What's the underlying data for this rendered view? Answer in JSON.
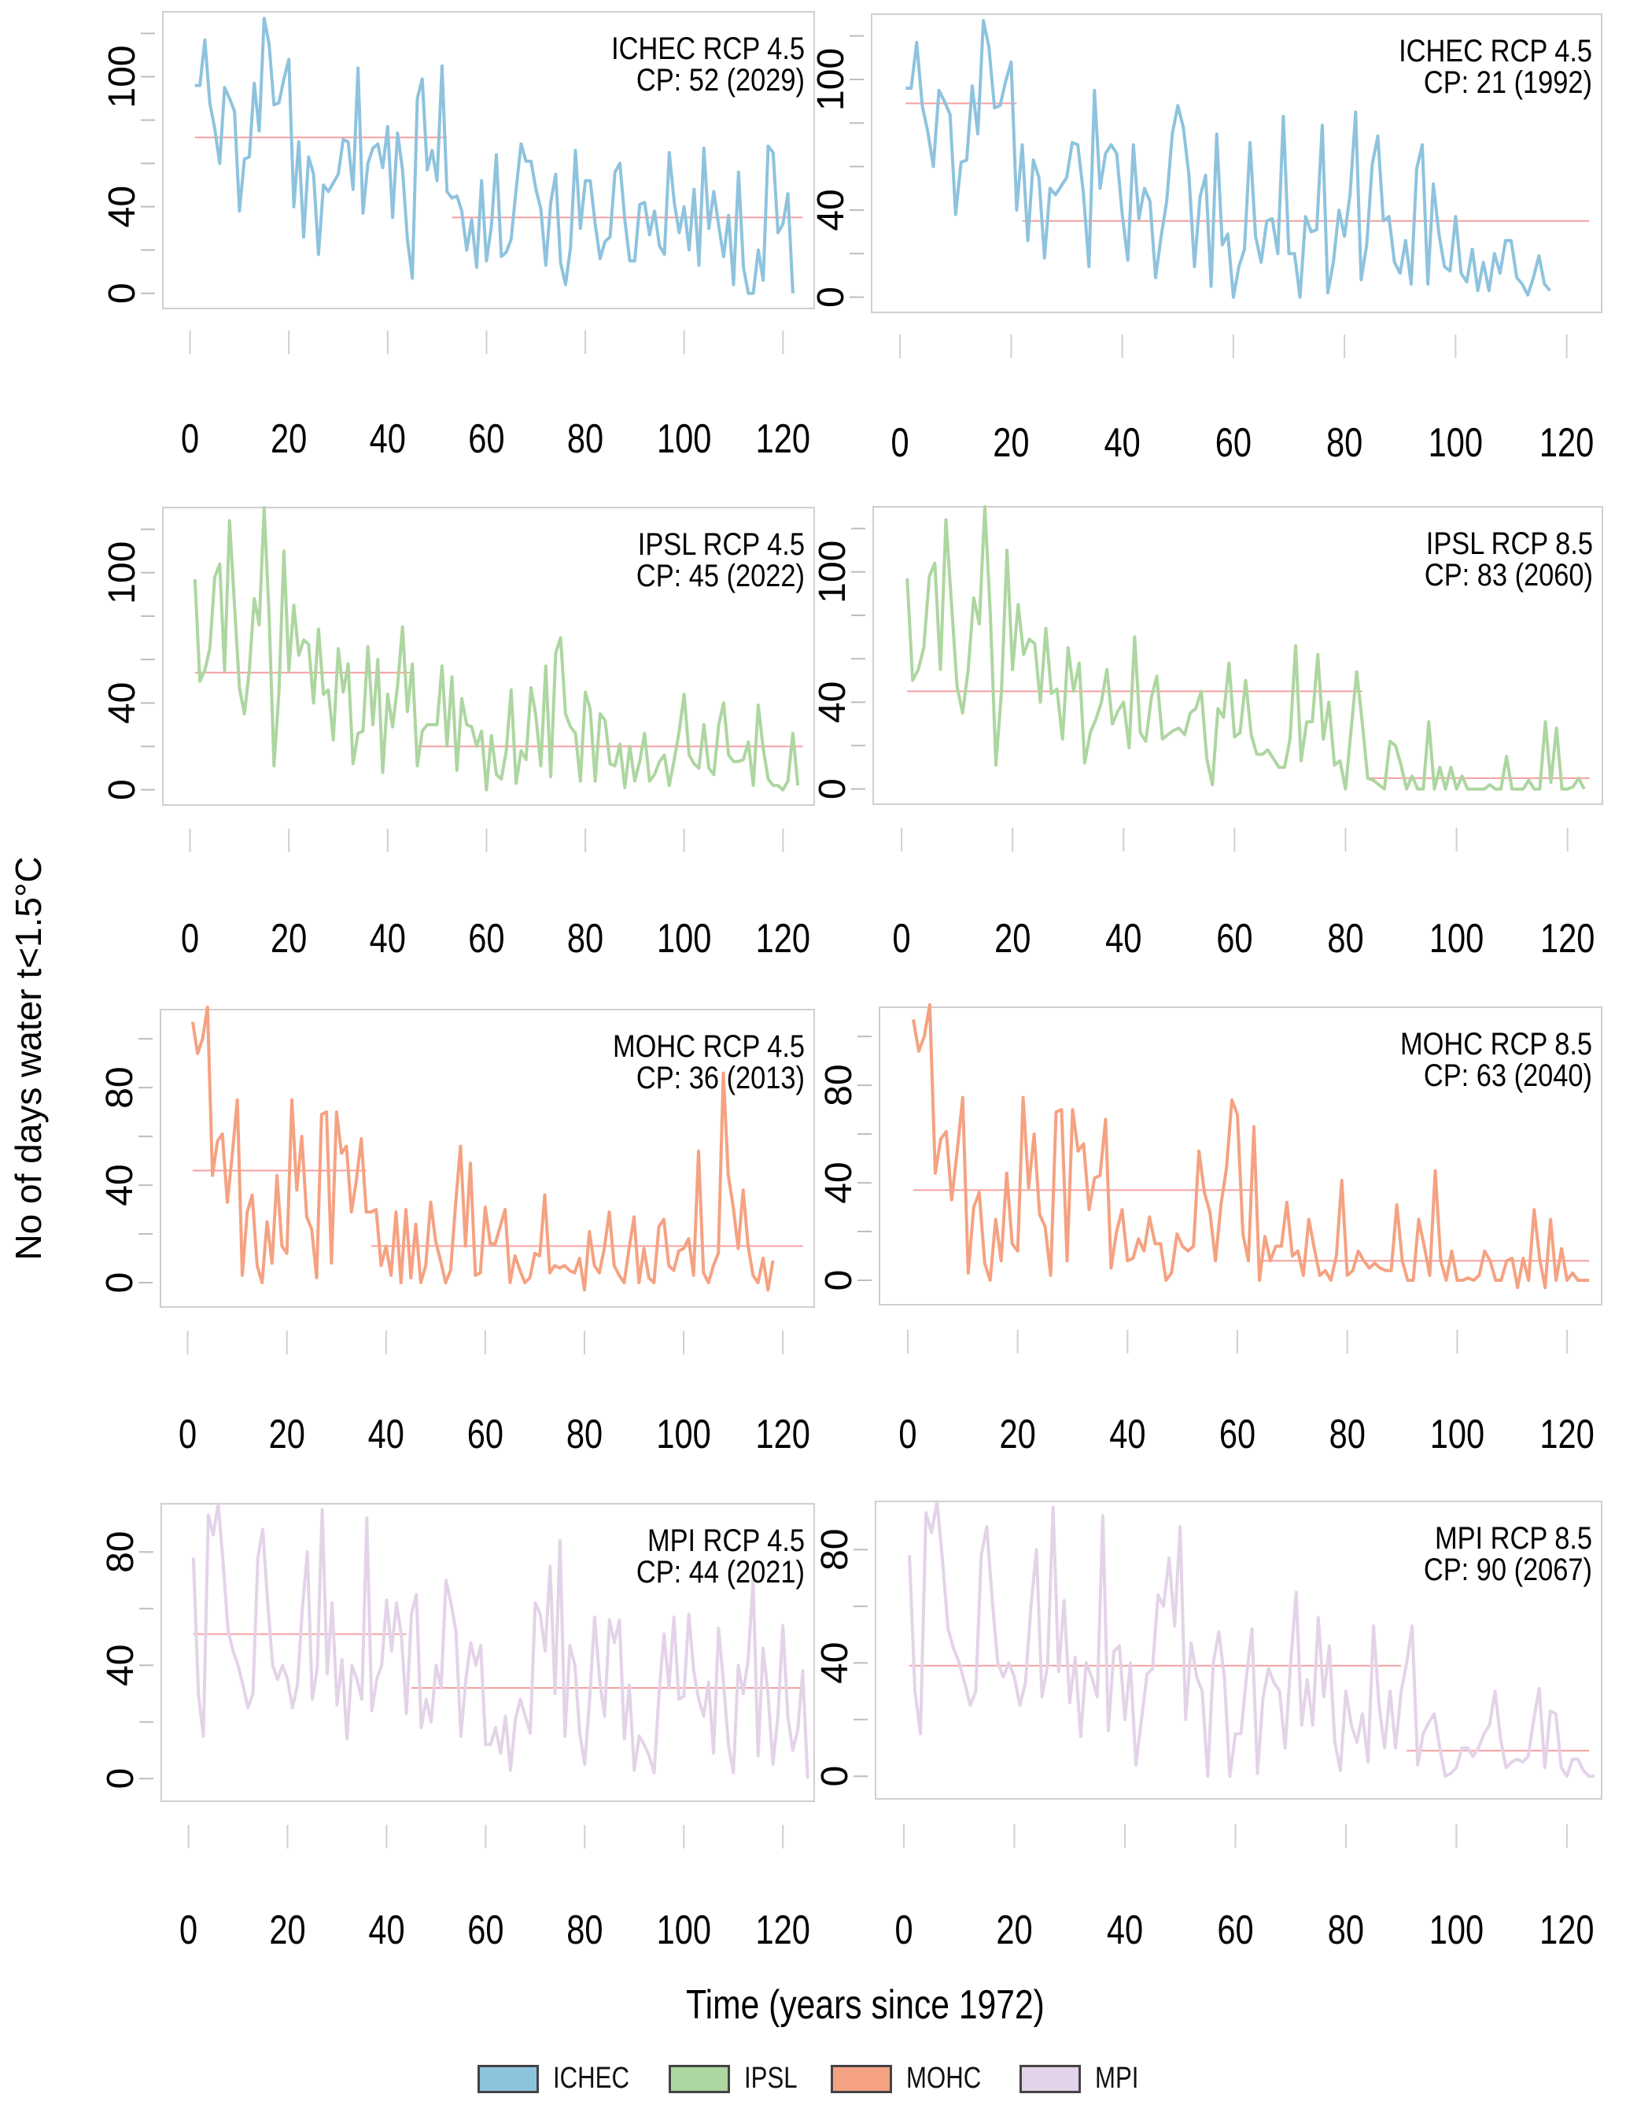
{
  "chart_data": {
    "type": "line",
    "ylabel": "No of days water t<1.5°C",
    "xlabel": "Time (years since 1972)",
    "legend": {
      "placement": "bottom-center",
      "entries": [
        {
          "name": "ICHEC",
          "color": "#8EC3DE"
        },
        {
          "name": "IPSL",
          "color": "#ADD6A0"
        },
        {
          "name": "MOHC",
          "color": "#F5A282"
        },
        {
          "name": "MPI",
          "color": "#E4D3E8"
        }
      ]
    },
    "changepoint_line_color": "#F4A0A0",
    "x_ticks": [
      0,
      20,
      40,
      60,
      80,
      100,
      120
    ],
    "panels": [
      {
        "model": "ICHEC",
        "title": "ICHEC RCP 4.5",
        "cp_label": "CP: 52 (2029)",
        "cp_index": 52,
        "color": "#8EC3DE",
        "ylim": [
          -7,
          130
        ],
        "yticks": [
          0,
          20,
          40,
          60,
          80,
          100,
          120
        ],
        "ytick_labels": [
          "0",
          "40",
          "100"
        ],
        "segment_means": [
          {
            "from": 1,
            "to": 52,
            "value": 72
          },
          {
            "from": 53,
            "to": 124,
            "value": 35
          }
        ],
        "values": [
          96,
          96,
          117,
          88,
          76,
          60,
          95,
          90,
          84,
          38,
          62,
          63,
          97,
          75,
          127,
          115,
          87,
          88,
          99,
          108,
          40,
          70,
          26,
          63,
          55,
          18,
          50,
          47,
          51,
          55,
          71,
          70,
          48,
          104,
          37,
          60,
          67,
          69,
          58,
          77,
          35,
          74,
          57,
          25,
          7,
          90,
          99,
          57,
          66,
          52,
          105,
          47,
          44,
          45,
          38,
          20,
          34,
          12,
          52,
          15,
          31,
          64,
          17,
          19,
          25,
          48,
          69,
          61,
          61,
          48,
          39,
          13,
          42,
          55,
          14,
          4,
          21,
          66,
          30,
          52,
          52,
          32,
          16,
          24,
          26,
          56,
          60,
          34,
          15,
          15,
          41,
          42,
          27,
          38,
          22,
          18,
          65,
          42,
          28,
          40,
          20,
          48,
          13,
          67,
          30,
          47,
          31,
          17,
          36,
          4,
          56,
          12,
          0,
          0,
          20,
          6,
          68,
          65,
          28,
          32,
          46,
          0
        ],
        "ylim_lo": -7
      },
      {
        "model": "ICHEC",
        "title": "ICHEC RCP 4.5",
        "cp_label": "CP: 21 (1992)",
        "cp_index": 21,
        "color": "#8EC3DE",
        "ylim": [
          -7,
          130
        ],
        "yticks": [
          0,
          20,
          40,
          60,
          80,
          100,
          120
        ],
        "ytick_labels": [
          "0",
          "40",
          "100"
        ],
        "segment_means": [
          {
            "from": 1,
            "to": 21,
            "value": 89
          },
          {
            "from": 22,
            "to": 124,
            "value": 35
          }
        ],
        "values": [
          96,
          96,
          117,
          88,
          76,
          60,
          95,
          90,
          84,
          38,
          62,
          63,
          97,
          75,
          127,
          115,
          87,
          88,
          99,
          108,
          40,
          70,
          26,
          63,
          55,
          18,
          50,
          47,
          51,
          55,
          71,
          70,
          48,
          14,
          95,
          50,
          66,
          70,
          66,
          38,
          17,
          70,
          36,
          50,
          44,
          9,
          28,
          44,
          75,
          88,
          78,
          56,
          14,
          46,
          56,
          5,
          75,
          24,
          29,
          0,
          14,
          22,
          71,
          28,
          16,
          35,
          36,
          20,
          83,
          20,
          20,
          0,
          37,
          30,
          31,
          79,
          2,
          16,
          40,
          28,
          47,
          85,
          8,
          24,
          61,
          74,
          35,
          37,
          16,
          11,
          26,
          6,
          59,
          70,
          6,
          52,
          29,
          14,
          12,
          37,
          11,
          7,
          22,
          3,
          16,
          3,
          20,
          11,
          26,
          26,
          9,
          6,
          1,
          9,
          19,
          6,
          3
        ],
        "ylim_lo": -7
      },
      {
        "model": "IPSL",
        "title": "IPSL RCP 4.5",
        "cp_label": "CP: 45 (2022)",
        "cp_index": 45,
        "color": "#ADD6A0",
        "ylim": [
          -7,
          130
        ],
        "yticks": [
          0,
          20,
          40,
          60,
          80,
          100,
          120
        ],
        "ytick_labels": [
          "0",
          "40",
          "100"
        ],
        "segment_means": [
          {
            "from": 1,
            "to": 45,
            "value": 54
          },
          {
            "from": 46,
            "to": 124,
            "value": 20
          }
        ],
        "values": [
          97,
          50,
          55,
          65,
          98,
          104,
          55,
          124,
          85,
          47,
          35,
          55,
          88,
          76,
          130,
          80,
          11,
          45,
          110,
          55,
          85,
          62,
          69,
          67,
          40,
          74,
          44,
          46,
          23,
          65,
          45,
          58,
          12,
          26,
          27,
          66,
          30,
          60,
          8,
          44,
          29,
          48,
          75,
          36,
          58,
          11,
          27,
          30,
          30,
          30,
          57,
          20,
          52,
          9,
          42,
          30,
          29,
          20,
          27,
          0,
          25,
          7,
          5,
          18,
          46,
          3,
          18,
          14,
          47,
          34,
          11,
          57,
          6,
          63,
          70,
          35,
          29,
          26,
          4,
          45,
          37,
          4,
          35,
          32,
          12,
          11,
          21,
          1,
          20,
          4,
          13,
          26,
          4,
          7,
          13,
          16,
          2,
          14,
          27,
          44,
          16,
          12,
          10,
          30,
          10,
          7,
          30,
          40,
          16,
          13,
          13,
          14,
          22,
          2,
          39,
          19,
          5,
          2,
          2,
          0,
          4,
          26,
          2
        ],
        "ylim_lo": -7
      },
      {
        "model": "IPSL",
        "title": "IPSL RCP 8.5",
        "cp_label": "CP: 83 (2060)",
        "cp_index": 83,
        "color": "#ADD6A0",
        "ylim": [
          -7,
          130
        ],
        "yticks": [
          0,
          20,
          40,
          60,
          80,
          100,
          120
        ],
        "ytick_labels": [
          "0",
          "40",
          "100"
        ],
        "segment_means": [
          {
            "from": 1,
            "to": 83,
            "value": 45
          },
          {
            "from": 84,
            "to": 124,
            "value": 5
          }
        ],
        "values": [
          97,
          50,
          55,
          65,
          98,
          104,
          55,
          124,
          85,
          47,
          35,
          55,
          88,
          76,
          130,
          80,
          11,
          45,
          110,
          55,
          85,
          62,
          69,
          67,
          40,
          74,
          44,
          46,
          23,
          65,
          45,
          58,
          12,
          26,
          32,
          40,
          55,
          30,
          36,
          40,
          19,
          70,
          26,
          22,
          42,
          52,
          23,
          25,
          27,
          28,
          25,
          35,
          37,
          45,
          14,
          2,
          37,
          33,
          58,
          24,
          26,
          50,
          25,
          16,
          16,
          18,
          14,
          10,
          10,
          23,
          66,
          13,
          31,
          31,
          62,
          23,
          40,
          11,
          13,
          0,
          27,
          54,
          31,
          5,
          4,
          2,
          0,
          22,
          20,
          11,
          0,
          6,
          0,
          0,
          31,
          0,
          10,
          0,
          10,
          0,
          6,
          0,
          0,
          0,
          0,
          2,
          0,
          0,
          15,
          0,
          0,
          0,
          4,
          0,
          0,
          31,
          3,
          28,
          0,
          0,
          1,
          5,
          0
        ],
        "ylim_lo": -7
      },
      {
        "model": "MOHC",
        "title": "MOHC RCP 4.5",
        "cp_label": "CP: 36 (2013)",
        "cp_index": 36,
        "color": "#F5A282",
        "ylim": [
          -10,
          112
        ],
        "yticks": [
          0,
          20,
          40,
          60,
          80,
          100
        ],
        "ytick_labels": [
          "0",
          "40",
          "80"
        ],
        "segment_means": [
          {
            "from": 1,
            "to": 36,
            "value": 46
          },
          {
            "from": 37,
            "to": 124,
            "value": 15
          }
        ],
        "values": [
          107,
          94,
          100,
          113,
          44,
          58,
          61,
          33,
          53,
          75,
          3,
          29,
          36,
          7,
          0,
          25,
          8,
          44,
          15,
          12,
          75,
          38,
          60,
          27,
          22,
          2,
          69,
          70,
          8,
          70,
          53,
          56,
          29,
          42,
          59,
          29,
          29,
          30,
          7,
          15,
          3,
          29,
          0,
          30,
          2,
          24,
          0,
          7,
          33,
          17,
          9,
          0,
          5,
          32,
          56,
          15,
          49,
          3,
          4,
          31,
          16,
          16,
          23,
          30,
          0,
          11,
          5,
          0,
          2,
          12,
          11,
          36,
          4,
          7,
          6,
          7,
          5,
          4,
          10,
          -3,
          21,
          7,
          4,
          14,
          29,
          7,
          3,
          0,
          14,
          27,
          0,
          14,
          2,
          0,
          23,
          26,
          7,
          5,
          13,
          14,
          18,
          3,
          54,
          4,
          0,
          7,
          12,
          86,
          44,
          31,
          14,
          38,
          15,
          3,
          0,
          10,
          -3,
          9
        ],
        "ylim_lo": -10
      },
      {
        "model": "MOHC",
        "title": "MOHC RCP 8.5",
        "cp_label": "CP: 63 (2040)",
        "cp_index": 63,
        "color": "#F5A282",
        "ylim": [
          -10,
          112
        ],
        "yticks": [
          0,
          20,
          40,
          60,
          80,
          100
        ],
        "ytick_labels": [
          "0",
          "40",
          "80"
        ],
        "segment_means": [
          {
            "from": 1,
            "to": 63,
            "value": 37
          },
          {
            "from": 64,
            "to": 124,
            "value": 8
          }
        ],
        "values": [
          107,
          94,
          100,
          113,
          44,
          58,
          61,
          33,
          53,
          75,
          3,
          30,
          36,
          7,
          0,
          25,
          8,
          44,
          15,
          12,
          75,
          38,
          60,
          27,
          22,
          2,
          69,
          70,
          8,
          70,
          53,
          56,
          29,
          42,
          43,
          66,
          5,
          20,
          29,
          8,
          9,
          17,
          12,
          26,
          15,
          15,
          0,
          3,
          19,
          14,
          12,
          14,
          53,
          36,
          28,
          8,
          31,
          46,
          74,
          68,
          19,
          8,
          63,
          0,
          18,
          8,
          14,
          14,
          32,
          10,
          12,
          2,
          25,
          13,
          2,
          4,
          0,
          10,
          41,
          2,
          4,
          12,
          8,
          5,
          7,
          5,
          4,
          4,
          31,
          8,
          0,
          0,
          25,
          14,
          2,
          45,
          8,
          0,
          12,
          0,
          0,
          1,
          0,
          2,
          12,
          8,
          0,
          0,
          8,
          9,
          -3,
          9,
          0,
          29,
          9,
          -3,
          25,
          0,
          13,
          0,
          3,
          0,
          0,
          0
        ],
        "ylim_lo": -10
      },
      {
        "model": "MPI",
        "title": "MPI RCP 4.5",
        "cp_label": "CP: 44 (2021)",
        "cp_index": 44,
        "color": "#E4D3E8",
        "ylim": [
          -8,
          97
        ],
        "yticks": [
          0,
          20,
          40,
          60,
          80
        ],
        "ytick_labels": [
          "0",
          "40",
          "80"
        ],
        "segment_means": [
          {
            "from": 1,
            "to": 44,
            "value": 51
          },
          {
            "from": 45,
            "to": 124,
            "value": 32
          }
        ],
        "values": [
          78,
          30,
          15,
          93,
          86,
          97,
          76,
          52,
          45,
          40,
          33,
          25,
          30,
          78,
          88,
          62,
          40,
          35,
          40,
          35,
          25,
          33,
          60,
          80,
          28,
          39,
          95,
          37,
          62,
          26,
          42,
          14,
          40,
          35,
          28,
          92,
          24,
          35,
          40,
          63,
          45,
          62,
          50,
          23,
          58,
          65,
          18,
          28,
          20,
          40,
          32,
          70,
          62,
          52,
          15,
          35,
          48,
          40,
          47,
          12,
          12,
          18,
          9,
          22,
          3,
          21,
          28,
          22,
          16,
          62,
          58,
          45,
          75,
          30,
          84,
          15,
          47,
          40,
          16,
          5,
          28,
          57,
          35,
          22,
          56,
          48,
          56,
          14,
          33,
          3,
          15,
          12,
          8,
          2,
          30,
          51,
          32,
          57,
          28,
          29,
          58,
          38,
          28,
          22,
          34,
          9,
          53,
          34,
          12,
          2,
          40,
          30,
          42,
          70,
          8,
          46,
          30,
          5,
          22,
          54,
          22,
          10,
          17,
          38,
          0
        ],
        "ylim_lo": -8
      },
      {
        "model": "MPI",
        "title": "MPI RCP 8.5",
        "cp_label": "CP: 90 (2067)",
        "cp_index": 90,
        "color": "#E4D3E8",
        "ylim": [
          -8,
          97
        ],
        "yticks": [
          0,
          20,
          40,
          60,
          80
        ],
        "ytick_labels": [
          "0",
          "40",
          "80"
        ],
        "segment_means": [
          {
            "from": 1,
            "to": 90,
            "value": 39
          },
          {
            "from": 91,
            "to": 124,
            "value": 9
          }
        ],
        "values": [
          78,
          30,
          15,
          93,
          86,
          97,
          76,
          52,
          45,
          40,
          33,
          25,
          30,
          78,
          88,
          62,
          40,
          35,
          40,
          35,
          25,
          33,
          60,
          80,
          28,
          39,
          95,
          37,
          62,
          26,
          42,
          14,
          40,
          35,
          28,
          92,
          16,
          44,
          46,
          20,
          40,
          4,
          20,
          36,
          38,
          64,
          60,
          77,
          53,
          88,
          20,
          47,
          35,
          30,
          0,
          40,
          51,
          35,
          0,
          15,
          15,
          35,
          52,
          1,
          28,
          38,
          33,
          30,
          10,
          40,
          65,
          18,
          34,
          18,
          56,
          28,
          46,
          12,
          2,
          30,
          18,
          12,
          22,
          5,
          53,
          25,
          10,
          30,
          10,
          30,
          40,
          53,
          4,
          15,
          19,
          22,
          10,
          0,
          1,
          3,
          10,
          10,
          7,
          10,
          15,
          18,
          30,
          13,
          3,
          5,
          6,
          5,
          7,
          20,
          31,
          3,
          23,
          22,
          3,
          0,
          6,
          6,
          2,
          0,
          0
        ],
        "ylim_lo": -8
      }
    ]
  },
  "legend_entries": [
    "ICHEC",
    "IPSL",
    "MOHC",
    "MPI"
  ]
}
